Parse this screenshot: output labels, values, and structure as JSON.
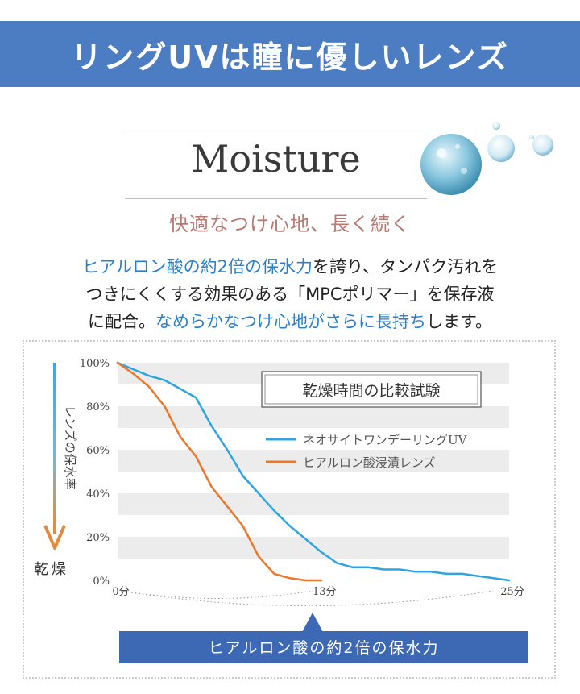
{
  "banner": {
    "title": "リングUVは瞳に優しいレンズ"
  },
  "section": {
    "heading": "Moisture",
    "subtitle": "快適なつけ心地、長く続く",
    "body": {
      "line1_blue": "ヒアルロン酸の約2倍の保水力",
      "line1_rest": "を誇り、タンパク汚れを",
      "line2": "つきにくくする効果のある「MPCポリマー」を保存液",
      "line3_start": "に配合。",
      "line3_blue": "なめらかなつけ心地がさらに長持ち",
      "line3_end": "します。"
    }
  },
  "chart_data": {
    "type": "line",
    "title": "乾燥時間の比較試験",
    "ylabel": "レンズの保水率",
    "y_bottom_label": "乾燥",
    "ylim": [
      0,
      100
    ],
    "xlim": [
      0,
      25
    ],
    "y_ticks": [
      "0%",
      "20%",
      "40%",
      "60%",
      "80%",
      "100%"
    ],
    "x_ticks": [
      {
        "value": 0,
        "label": "0分"
      },
      {
        "value": 13,
        "label": "13分"
      },
      {
        "value": 25,
        "label": "25分"
      }
    ],
    "grid": "horizontal bands",
    "legend": "top-right",
    "series": [
      {
        "name": "ネオサイトワンデーリングUV",
        "color": "#2fa4e0",
        "x": [
          0,
          1,
          2,
          3,
          4,
          5,
          6,
          7,
          8,
          9,
          10,
          11,
          12,
          13,
          14,
          15,
          16,
          17,
          18,
          19,
          20,
          21,
          22,
          23,
          24,
          25
        ],
        "y": [
          100,
          97,
          94,
          92,
          88,
          84,
          71,
          60,
          48,
          40,
          32,
          25,
          19,
          13,
          8,
          6,
          6,
          5,
          5,
          4,
          4,
          3,
          3,
          2,
          1,
          0
        ]
      },
      {
        "name": "ヒアルロン酸浸漬レンズ",
        "color": "#e8782c",
        "x": [
          0,
          1,
          2,
          3,
          4,
          5,
          6,
          7,
          8,
          9,
          10,
          11,
          12,
          13
        ],
        "y": [
          100,
          95,
          89,
          80,
          66,
          57,
          43,
          34,
          25,
          11,
          3,
          1,
          0,
          0
        ]
      }
    ],
    "callout": "ヒアルロン酸の約2倍の保水力"
  }
}
